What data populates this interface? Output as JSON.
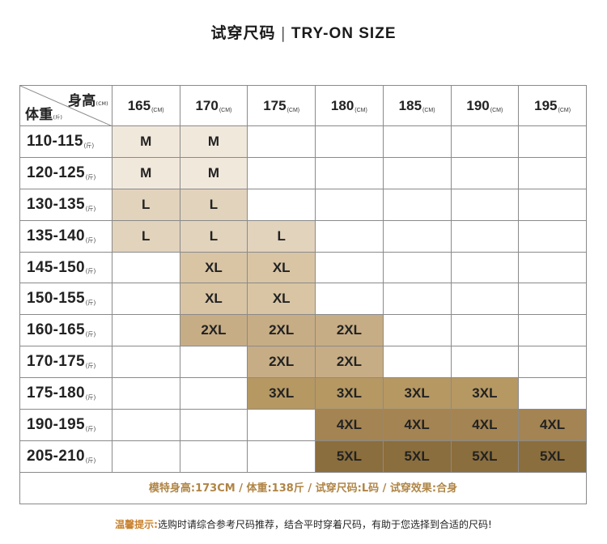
{
  "title": {
    "cn": "试穿尺码",
    "sep": "|",
    "en": "TRY-ON SIZE"
  },
  "corner": {
    "height_label": "身高",
    "height_unit": "(CM)",
    "weight_label": "体重",
    "weight_unit": "(斤)"
  },
  "heights": [
    {
      "value": "165",
      "unit": "(CM)"
    },
    {
      "value": "170",
      "unit": "(CM)"
    },
    {
      "value": "175",
      "unit": "(CM)"
    },
    {
      "value": "180",
      "unit": "(CM)"
    },
    {
      "value": "185",
      "unit": "(CM)"
    },
    {
      "value": "190",
      "unit": "(CM)"
    },
    {
      "value": "195",
      "unit": "(CM)"
    }
  ],
  "weight_unit": "(斤)",
  "rows": [
    {
      "weight": "110-115",
      "sizes": [
        "M",
        "M",
        "",
        "",
        "",
        "",
        ""
      ]
    },
    {
      "weight": "120-125",
      "sizes": [
        "M",
        "M",
        "",
        "",
        "",
        "",
        ""
      ]
    },
    {
      "weight": "130-135",
      "sizes": [
        "L",
        "L",
        "",
        "",
        "",
        "",
        ""
      ]
    },
    {
      "weight": "135-140",
      "sizes": [
        "L",
        "L",
        "L",
        "",
        "",
        "",
        ""
      ]
    },
    {
      "weight": "145-150",
      "sizes": [
        "",
        "XL",
        "XL",
        "",
        "",
        "",
        ""
      ]
    },
    {
      "weight": "150-155",
      "sizes": [
        "",
        "XL",
        "XL",
        "",
        "",
        "",
        ""
      ]
    },
    {
      "weight": "160-165",
      "sizes": [
        "",
        "2XL",
        "2XL",
        "2XL",
        "",
        "",
        ""
      ]
    },
    {
      "weight": "170-175",
      "sizes": [
        "",
        "",
        "2XL",
        "2XL",
        "",
        "",
        ""
      ]
    },
    {
      "weight": "175-180",
      "sizes": [
        "",
        "",
        "3XL",
        "3XL",
        "3XL",
        "3XL",
        ""
      ]
    },
    {
      "weight": "190-195",
      "sizes": [
        "",
        "",
        "",
        "4XL",
        "4XL",
        "4XL",
        "4XL"
      ]
    },
    {
      "weight": "205-210",
      "sizes": [
        "",
        "",
        "",
        "5XL",
        "5XL",
        "5XL",
        "5XL"
      ]
    }
  ],
  "size_colors": {
    "M": "#f1e8dc",
    "L": "#e2d3bd",
    "XL": "#d9c5a4",
    "2XL": "#c7ad85",
    "3XL": "#b69863",
    "4XL": "#a48452",
    "5XL": "#8b6e3d"
  },
  "model_info": "模特身高:173CM  /  体重:138斤  /  试穿尺码:L码  /  试穿效果:合身",
  "tip": {
    "label": "温馨提示:",
    "text": "选购时请综合参考尺码推荐，结合平时穿着尺码，有助于您选择到合适的尺码!"
  }
}
